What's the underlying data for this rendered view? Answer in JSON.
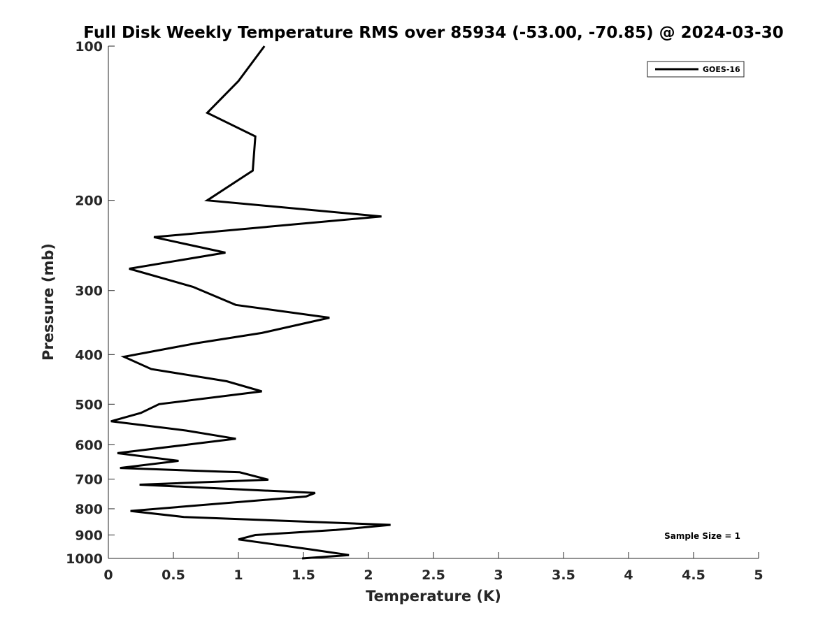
{
  "chart_data": {
    "type": "line",
    "title": "Full Disk Weekly Temperature RMS over 85934 (-53.00, -70.85) @ 2024-03-30",
    "xlabel": "Temperature (K)",
    "ylabel": "Pressure (mb)",
    "xlim": [
      0,
      5
    ],
    "ylim": [
      100,
      1000
    ],
    "y_scale": "log",
    "y_reversed": true,
    "xticks": [
      "0",
      "0.5",
      "1",
      "1.5",
      "2",
      "2.5",
      "3",
      "3.5",
      "4",
      "4.5",
      "5"
    ],
    "yticks": [
      "100",
      "200",
      "300",
      "400",
      "500",
      "600",
      "700",
      "800",
      "900",
      "1000"
    ],
    "grid": false,
    "legend_position": "top-right",
    "annotation": "Sample Size = 1",
    "series": [
      {
        "name": "GOES-16",
        "color": "#000000",
        "points": [
          [
            1.2,
            100
          ],
          [
            1.0,
            117
          ],
          [
            0.76,
            135
          ],
          [
            1.13,
            150
          ],
          [
            1.11,
            175
          ],
          [
            0.76,
            200
          ],
          [
            2.1,
            215
          ],
          [
            0.35,
            236
          ],
          [
            0.9,
            253
          ],
          [
            0.16,
            272
          ],
          [
            0.65,
            295
          ],
          [
            0.98,
            320
          ],
          [
            1.7,
            339
          ],
          [
            1.18,
            363
          ],
          [
            0.68,
            380
          ],
          [
            0.12,
            404
          ],
          [
            0.33,
            427
          ],
          [
            0.91,
            451
          ],
          [
            1.18,
            472
          ],
          [
            0.39,
            500
          ],
          [
            0.25,
            520
          ],
          [
            0.02,
            540
          ],
          [
            0.6,
            563
          ],
          [
            0.98,
            584
          ],
          [
            0.07,
            623
          ],
          [
            0.54,
            645
          ],
          [
            0.09,
            666
          ],
          [
            1.01,
            679
          ],
          [
            1.23,
            702
          ],
          [
            0.24,
            718
          ],
          [
            1.59,
            745
          ],
          [
            1.52,
            757
          ],
          [
            0.17,
            808
          ],
          [
            0.58,
            830
          ],
          [
            2.17,
            860
          ],
          [
            1.75,
            880
          ],
          [
            1.13,
            900
          ],
          [
            1.0,
            918
          ],
          [
            1.55,
            960
          ],
          [
            1.85,
            985
          ],
          [
            1.49,
            1000
          ]
        ]
      }
    ]
  }
}
